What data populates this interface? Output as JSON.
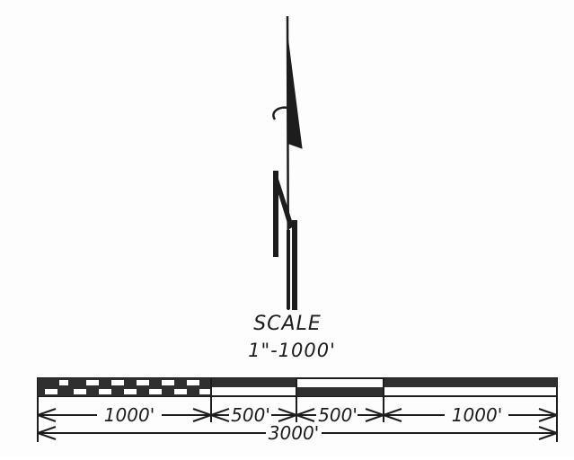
{
  "scale": {
    "title": "SCALE",
    "ratio": "1\"-1000'"
  },
  "dimensions": {
    "seg1": "1000'",
    "seg2": "500'",
    "seg3": "500'",
    "seg4": "1000'",
    "total": "3000'"
  }
}
